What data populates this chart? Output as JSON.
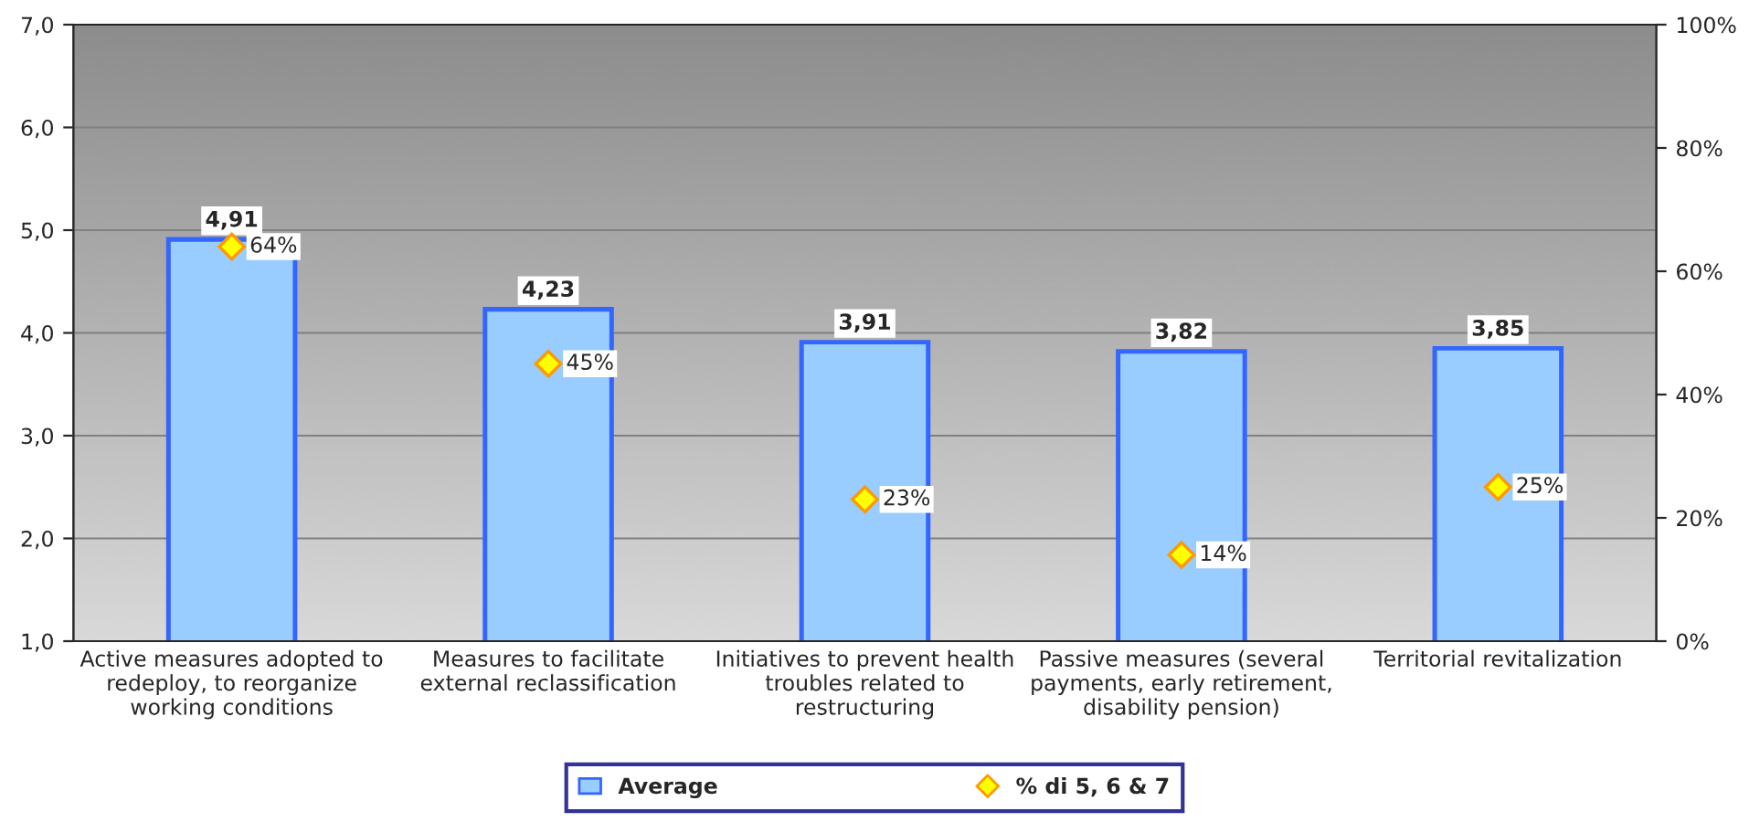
{
  "chart_data": {
    "type": "bar",
    "categories": [
      "Active measures adopted to redeploy, to reorganize working conditions",
      "Measures to facilitate external reclassification",
      "Initiatives to prevent health troubles related to restructuring",
      "Passive measures (several payments, early retirement, disability pension)",
      "Territorial revitalization"
    ],
    "series": [
      {
        "name": "Average",
        "color": "#99ccff",
        "values": [
          4.91,
          4.23,
          3.91,
          3.82,
          3.85
        ],
        "value_labels": [
          "4,91",
          "4,23",
          "3,91",
          "3,82",
          "3,85"
        ]
      },
      {
        "name": "% di 5, 6 & 7",
        "type": "scatter",
        "axis": "y2",
        "color": "#ffff00",
        "marker": "diamond",
        "values": [
          64,
          45,
          23,
          14,
          25
        ],
        "value_labels": [
          "64%",
          "45%",
          "23%",
          "14%",
          "25%"
        ]
      }
    ],
    "ylim": [
      1,
      7
    ],
    "yticks": [
      {
        "value": 1,
        "label": "1,0"
      },
      {
        "value": 2,
        "label": "2,0"
      },
      {
        "value": 3,
        "label": "3,0"
      },
      {
        "value": 4,
        "label": "4,0"
      },
      {
        "value": 5,
        "label": "5,0"
      },
      {
        "value": 6,
        "label": "6,0"
      },
      {
        "value": 7,
        "label": "7,0"
      }
    ],
    "y2lim": [
      0,
      100
    ],
    "y2ticks": [
      {
        "value": 0,
        "label": "0%"
      },
      {
        "value": 20,
        "label": "20%"
      },
      {
        "value": 40,
        "label": "40%"
      },
      {
        "value": 60,
        "label": "60%"
      },
      {
        "value": 80,
        "label": "80%"
      },
      {
        "value": 100,
        "label": "100%"
      }
    ],
    "grid": "y",
    "legend": "bottom"
  }
}
